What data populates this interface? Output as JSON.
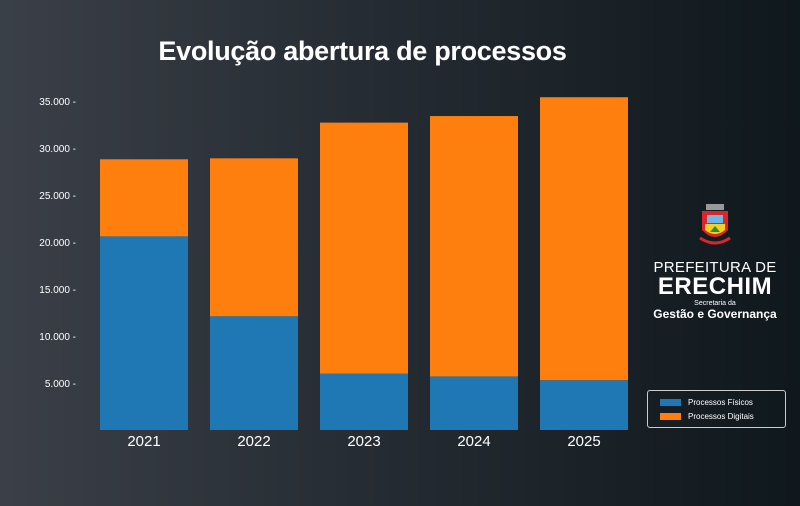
{
  "chart_data": {
    "type": "bar",
    "stacked": true,
    "title": "Evolução abertura de processos",
    "categories": [
      "2021",
      "2022",
      "2023",
      "2024",
      "2025"
    ],
    "series": [
      {
        "name": "Processos Físicos",
        "color": "#1f77b4",
        "values": [
          20600,
          12100,
          6000,
          5700,
          5300
        ]
      },
      {
        "name": "Processos Digitais",
        "color": "#ff7f0e",
        "values": [
          8200,
          16800,
          26700,
          27700,
          30100
        ]
      }
    ],
    "yticks": [
      "5.000 -",
      "10.000 -",
      "15.000 -",
      "20.000 -",
      "25.000 -",
      "30.000 -",
      "35.000 -"
    ],
    "ytick_values": [
      5000,
      10000,
      15000,
      20000,
      25000,
      30000,
      35000
    ],
    "ylim": [
      0,
      35000
    ],
    "grid": false,
    "legend": "bottom-right"
  },
  "logo": {
    "line1": "PREFEITURA DE",
    "line2": "ERECHIM",
    "line3": "Secretaria da",
    "line4": "Gestão e Governança"
  }
}
